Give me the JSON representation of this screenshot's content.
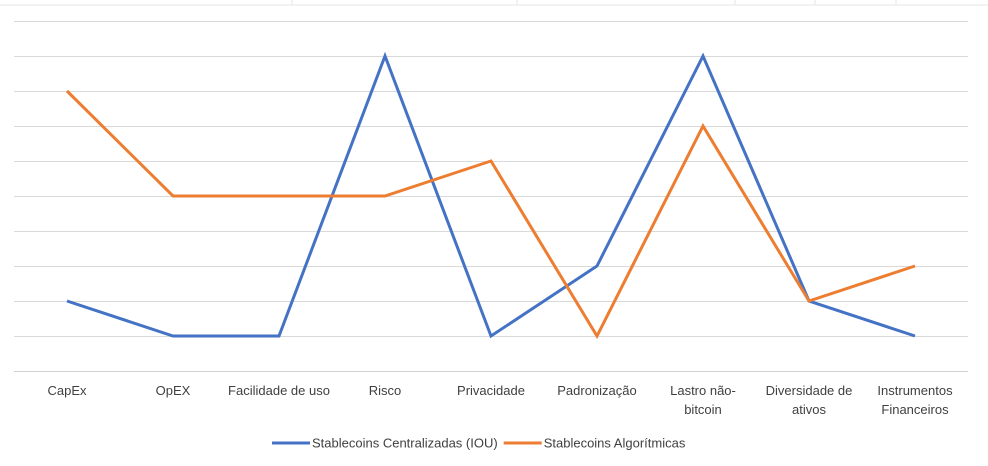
{
  "chart_data": {
    "type": "line",
    "title": "",
    "xlabel": "",
    "ylabel": "",
    "categories": [
      [
        "CapEx"
      ],
      [
        "OpEX"
      ],
      [
        "Facilidade de uso"
      ],
      [
        "Risco"
      ],
      [
        "Privacidade"
      ],
      [
        "Padronização"
      ],
      [
        "Lastro não-",
        "bitcoin"
      ],
      [
        "Diversidade de",
        "ativos"
      ],
      [
        "Instrumentos",
        "Financeiros"
      ]
    ],
    "ylim": [
      0,
      10
    ],
    "y_tick_labels_visible": false,
    "grid": "horizontal",
    "legend": "bottom",
    "series": [
      {
        "name": "Stablecoins Centralizadas (IOU)",
        "color": "#4472C4",
        "values": [
          2,
          1,
          1,
          9,
          1,
          3,
          9,
          2,
          1
        ]
      },
      {
        "name": "Stablecoins Algorítmicas",
        "color": "#ED7D31",
        "values": [
          8,
          5,
          5,
          5,
          6,
          1,
          7,
          2,
          3
        ]
      }
    ]
  }
}
